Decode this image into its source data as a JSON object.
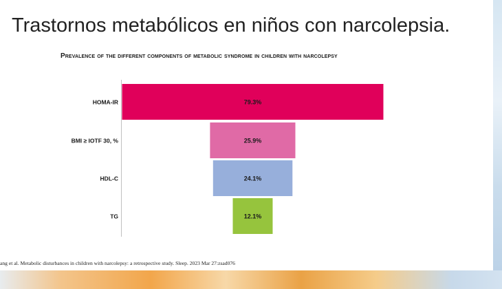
{
  "slide": {
    "title": "Trastornos metabólicos en niños con narcolepsia.",
    "citation": "ang et al. Metabolic disturbances in children with narcolepsy: a retrospective study. Sleep. 2023 Mar 27:zsad076"
  },
  "chart_data": {
    "type": "bar",
    "orientation": "horizontal-funnel",
    "title": "Prevalence of the different components of metabolic syndrome in children with narcolepsy",
    "categories": [
      "HOMA-IR",
      "BMI ≥ IOTF 30, %",
      "HDL-C",
      "TG"
    ],
    "values": [
      79.3,
      25.9,
      24.1,
      12.1
    ],
    "labels": [
      "79.3%",
      "25.9%",
      "24.1%",
      "12.1%"
    ],
    "colors": [
      "#e0005a",
      "#e06aa6",
      "#97afdb",
      "#96c43d"
    ],
    "xlim": [
      0,
      100
    ],
    "grid": false,
    "legend": "none"
  }
}
